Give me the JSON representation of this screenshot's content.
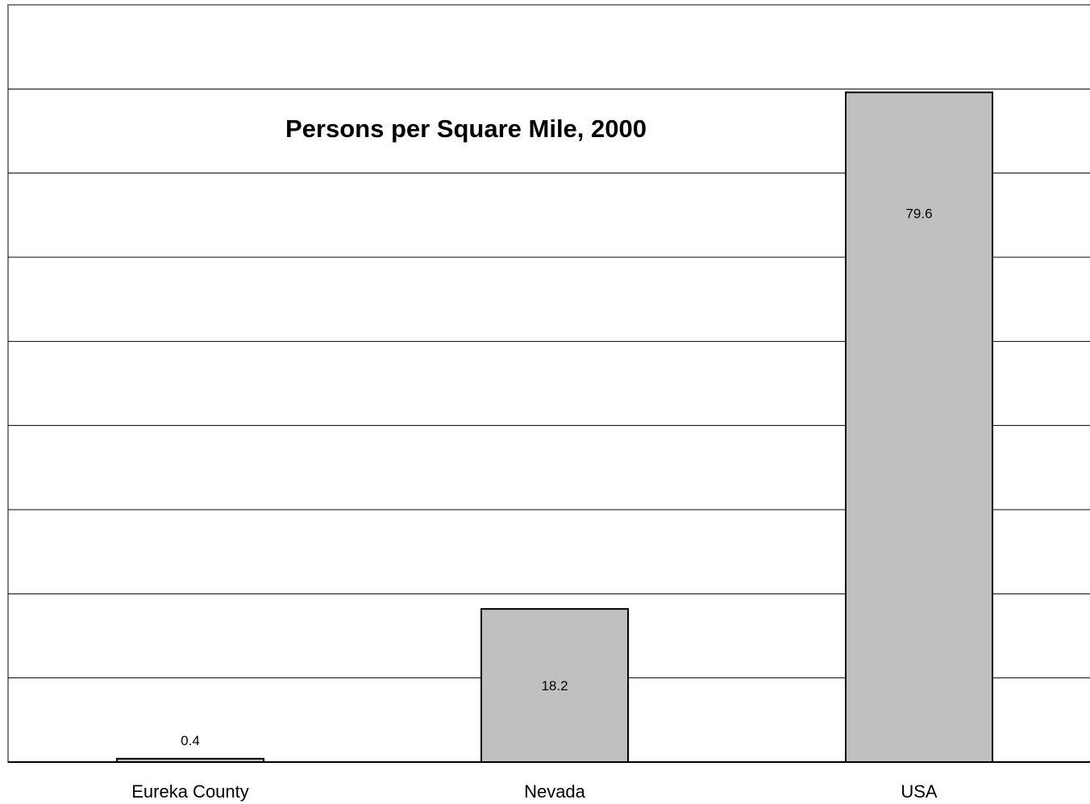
{
  "chart_data": {
    "type": "bar",
    "title": "Persons per Square Mile, 2000",
    "categories": [
      "Eureka County",
      "Nevada",
      "USA"
    ],
    "values": [
      0.4,
      18.2,
      79.6
    ],
    "data_labels": [
      "0.4",
      "18.2",
      "79.6"
    ],
    "xlabel": "",
    "ylabel": "",
    "ylim": [
      0,
      90
    ],
    "grid": true,
    "legend": "none",
    "bar_color": "#c0c0c0",
    "edge_color": "#000000"
  }
}
